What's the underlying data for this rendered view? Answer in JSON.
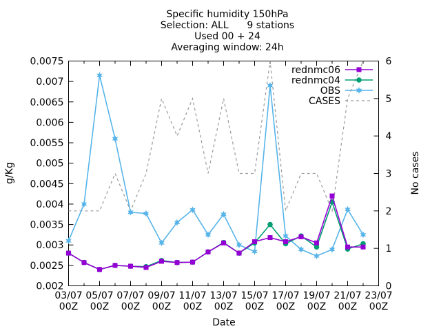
{
  "chart_data": {
    "type": "line",
    "title_lines": [
      "Specific humidity 150hPa",
      "Selection: ALL      9 stations",
      "Used 00 + 24",
      "Averaging window: 24h"
    ],
    "xlabel": "Date",
    "ylabel": "g/Kg",
    "y2label": "No cases",
    "ylim": [
      0.002,
      0.0075
    ],
    "y2lim": [
      0,
      6
    ],
    "grid": false,
    "legend_position": "top-right",
    "x_days": [
      3,
      4,
      5,
      6,
      7,
      8,
      9,
      10,
      11,
      12,
      13,
      14,
      15,
      16,
      17,
      18,
      19,
      20,
      21,
      22
    ],
    "xlim": [
      3,
      23
    ],
    "x_ticks": [
      {
        "x": 3,
        "top": "03/07",
        "bottom": "00Z"
      },
      {
        "x": 5,
        "top": "05/07",
        "bottom": "00Z"
      },
      {
        "x": 7,
        "top": "07/07",
        "bottom": "00Z"
      },
      {
        "x": 9,
        "top": "09/07",
        "bottom": "00Z"
      },
      {
        "x": 11,
        "top": "11/07",
        "bottom": "00Z"
      },
      {
        "x": 13,
        "top": "13/07",
        "bottom": "00Z"
      },
      {
        "x": 15,
        "top": "15/07",
        "bottom": "00Z"
      },
      {
        "x": 17,
        "top": "17/07",
        "bottom": "00Z"
      },
      {
        "x": 19,
        "top": "19/07",
        "bottom": "00Z"
      },
      {
        "x": 21,
        "top": "21/07",
        "bottom": "00Z"
      },
      {
        "x": 23,
        "top": "23/07",
        "bottom": "00Z"
      }
    ],
    "y_ticks": [
      "0.002",
      "0.0025",
      "0.003",
      "0.0035",
      "0.004",
      "0.0045",
      "0.005",
      "0.0055",
      "0.006",
      "0.0065",
      "0.007",
      "0.0075"
    ],
    "y2_ticks": [
      "0",
      "1",
      "2",
      "3",
      "4",
      "5",
      "6"
    ],
    "series": [
      {
        "name": "rednmc06",
        "color": "#9400d3",
        "marker": "square",
        "axis": "y",
        "values": [
          0.0028,
          0.00257,
          0.0024,
          0.0025,
          0.00248,
          0.00245,
          0.0026,
          0.00257,
          0.00258,
          0.00283,
          0.00305,
          0.0028,
          0.00308,
          0.00318,
          0.00308,
          0.0032,
          0.00305,
          0.0042,
          0.00295,
          0.00295
        ]
      },
      {
        "name": "rednmc04",
        "color": "#009e73",
        "marker": "circle",
        "axis": "y",
        "values": [
          0.0028,
          0.00257,
          0.0024,
          0.0025,
          0.00248,
          0.00247,
          0.00262,
          0.00257,
          0.00258,
          0.00283,
          0.00306,
          0.0028,
          0.00305,
          0.0035,
          0.00303,
          0.00322,
          0.00295,
          0.00405,
          0.0029,
          0.00303
        ]
      },
      {
        "name": "OBS",
        "color": "#56b4e9",
        "marker": "star",
        "axis": "y",
        "values": [
          0.0031,
          0.004,
          0.00715,
          0.0056,
          0.0038,
          0.00377,
          0.00305,
          0.00355,
          0.00386,
          0.00325,
          0.00375,
          0.003,
          0.00284,
          0.0069,
          0.00322,
          0.00289,
          0.00273,
          0.00289,
          0.00387,
          0.00325
        ]
      },
      {
        "name": "CASES",
        "color": "#999999",
        "marker": "none",
        "dashed": true,
        "axis": "y2",
        "values": [
          2,
          2,
          2,
          3,
          2,
          3,
          5,
          4,
          5,
          3,
          5,
          3,
          3,
          6,
          2,
          3,
          3,
          2,
          5,
          6
        ]
      }
    ]
  }
}
